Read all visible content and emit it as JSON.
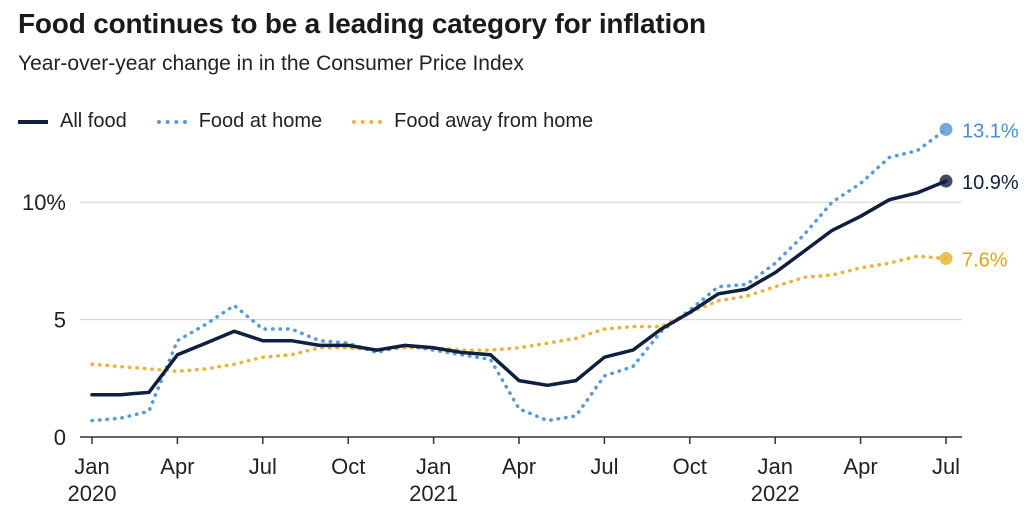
{
  "title": "Food continues to be a leading category for inflation",
  "subtitle": "Year-over-year change in in the Consumer Price Index",
  "colors": {
    "all_food": "#0f1f3d",
    "food_at_home": "#5b9bd5",
    "food_away": "#e8b53a",
    "grid": "#d9d9d9",
    "axis": "#333333"
  },
  "chart_data": {
    "type": "line",
    "title": "Food continues to be a leading category for inflation",
    "subtitle": "Year-over-year change in in the Consumer Price Index",
    "x": [
      "2020-01",
      "2020-02",
      "2020-03",
      "2020-04",
      "2020-05",
      "2020-06",
      "2020-07",
      "2020-08",
      "2020-09",
      "2020-10",
      "2020-11",
      "2020-12",
      "2021-01",
      "2021-02",
      "2021-03",
      "2021-04",
      "2021-05",
      "2021-06",
      "2021-07",
      "2021-08",
      "2021-09",
      "2021-10",
      "2021-11",
      "2021-12",
      "2022-01",
      "2022-02",
      "2022-03",
      "2022-04",
      "2022-05",
      "2022-06",
      "2022-07"
    ],
    "series": [
      {
        "name": "All food",
        "style": "solid",
        "values": [
          1.8,
          1.8,
          1.9,
          3.5,
          4.0,
          4.5,
          4.1,
          4.1,
          3.9,
          3.9,
          3.7,
          3.9,
          3.8,
          3.6,
          3.5,
          2.4,
          2.2,
          2.4,
          3.4,
          3.7,
          4.6,
          5.3,
          6.1,
          6.3,
          7.0,
          7.9,
          8.8,
          9.4,
          10.1,
          10.4,
          10.9
        ],
        "end_label": "10.9%"
      },
      {
        "name": "Food at home",
        "style": "dotted",
        "values": [
          0.7,
          0.8,
          1.1,
          4.1,
          4.8,
          5.6,
          4.6,
          4.6,
          4.1,
          4.0,
          3.6,
          3.9,
          3.7,
          3.5,
          3.3,
          1.2,
          0.7,
          0.9,
          2.6,
          3.0,
          4.5,
          5.4,
          6.4,
          6.5,
          7.4,
          8.6,
          10.0,
          10.8,
          11.9,
          12.2,
          13.1
        ],
        "end_label": "13.1%"
      },
      {
        "name": "Food away from home",
        "style": "dotted",
        "values": [
          3.1,
          3.0,
          2.9,
          2.8,
          2.9,
          3.1,
          3.4,
          3.5,
          3.8,
          3.8,
          3.7,
          3.8,
          3.8,
          3.7,
          3.7,
          3.8,
          4.0,
          4.2,
          4.6,
          4.7,
          4.7,
          5.3,
          5.8,
          6.0,
          6.4,
          6.8,
          6.9,
          7.2,
          7.4,
          7.7,
          7.6
        ],
        "end_label": "7.6%"
      }
    ],
    "y_ticks": [
      {
        "value": 0,
        "label": "0"
      },
      {
        "value": 5,
        "label": "5"
      },
      {
        "value": 10,
        "label": "10%"
      }
    ],
    "x_ticks": [
      {
        "index": 0,
        "month": "Jan",
        "year": "2020"
      },
      {
        "index": 3,
        "month": "Apr",
        "year": ""
      },
      {
        "index": 6,
        "month": "Jul",
        "year": ""
      },
      {
        "index": 9,
        "month": "Oct",
        "year": ""
      },
      {
        "index": 12,
        "month": "Jan",
        "year": "2021"
      },
      {
        "index": 15,
        "month": "Apr",
        "year": ""
      },
      {
        "index": 18,
        "month": "Jul",
        "year": ""
      },
      {
        "index": 21,
        "month": "Oct",
        "year": ""
      },
      {
        "index": 24,
        "month": "Jan",
        "year": "2022"
      },
      {
        "index": 27,
        "month": "Apr",
        "year": ""
      },
      {
        "index": 30,
        "month": "Jul",
        "year": ""
      }
    ],
    "ylim": [
      0,
      13.5
    ],
    "grid": true,
    "legend_position": "top-left"
  }
}
